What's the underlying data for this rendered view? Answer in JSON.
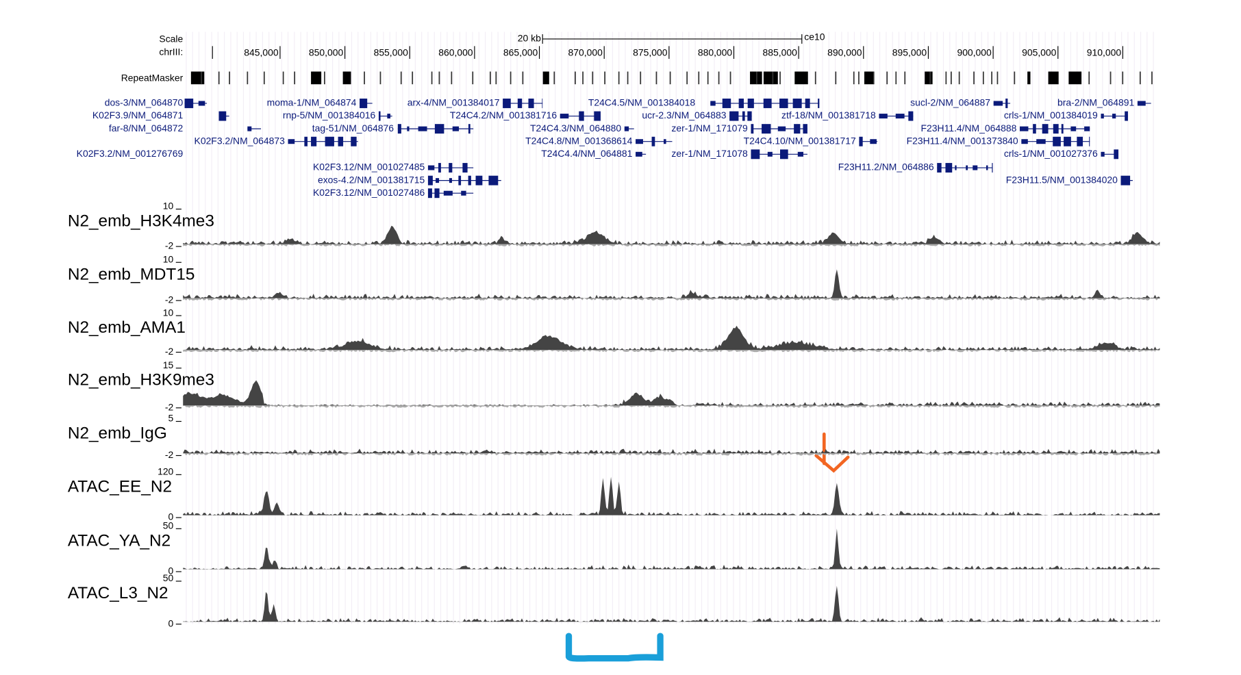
{
  "ruler": {
    "scale_label": "Scale",
    "chrom_label": "chrIII:",
    "scale_bar": "20 kb",
    "assembly": "ce10",
    "positions": [
      "845,000",
      "850,000",
      "855,000",
      "860,000",
      "865,000",
      "870,000",
      "875,000",
      "880,000",
      "885,000",
      "890,000",
      "895,000",
      "900,000",
      "905,000",
      "910,000"
    ]
  },
  "repeat_track": "RepeatMasker",
  "genes": [
    "dos-3/NM_064870",
    "K02F3.9/NM_064871",
    "far-8/NM_064872",
    "K02F3.2/NM_064873",
    "K02F3.2/NM_001276769",
    "moma-1/NM_064874",
    "rnp-5/NM_001384016",
    "tag-51/NM_064876",
    "K02F3.12/NM_001027485",
    "exos-4.2/NM_001381715",
    "K02F3.12/NM_001027486",
    "arx-4/NM_001384017",
    "T24C4.2/NM_001381716",
    "T24C4.3/NM_064880",
    "T24C4.8/NM_001368614",
    "T24C4.4/NM_064881",
    "T24C4.5/NM_001384018",
    "ucr-2.3/NM_064883",
    "zer-1/NM_171079",
    "T24C4.10/NM_001381717",
    "zer-1/NM_171078",
    "ztf-18/NM_001381718",
    "sucl-2/NM_064887",
    "F23H11.4/NM_064888",
    "F23H11.4/NM_001373840",
    "F23H11.2/NM_064886",
    "crls-1/NM_001384019",
    "crls-1/NM_001027376",
    "bra-2/NM_064891",
    "F23H11.5/NM_001384020"
  ],
  "signal_tracks": [
    {
      "name": "N2_emb_H3K4me3",
      "max": 10,
      "min": -2
    },
    {
      "name": "N2_emb_MDT15",
      "max": 10,
      "min": -2
    },
    {
      "name": "N2_emb_AMA1",
      "max": 10,
      "min": -2
    },
    {
      "name": "N2_emb_H3K9me3",
      "max": 15,
      "min": -2
    },
    {
      "name": "N2_emb_IgG",
      "max": 5,
      "min": -2
    },
    {
      "name": "ATAC_EE_N2",
      "max": 120,
      "min": 0
    },
    {
      "name": "ATAC_YA_N2",
      "max": 50,
      "min": 0
    },
    {
      "name": "ATAC_L3_N2",
      "max": 50,
      "min": 0
    }
  ]
}
